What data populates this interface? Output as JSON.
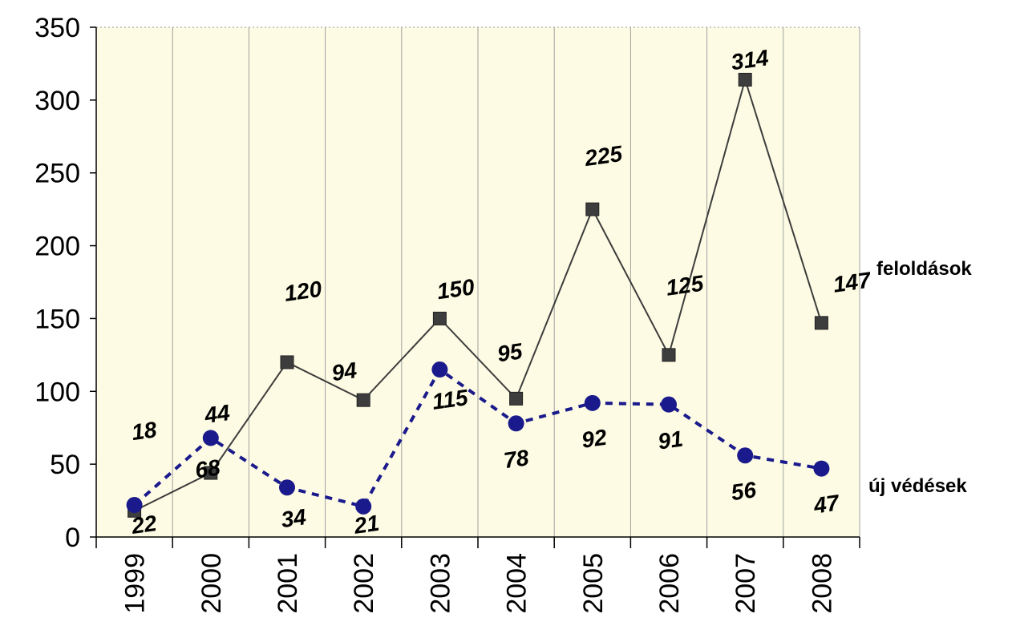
{
  "chart_data": {
    "type": "line",
    "categories": [
      "1999",
      "2000",
      "2001",
      "2002",
      "2003",
      "2004",
      "2005",
      "2006",
      "2007",
      "2008"
    ],
    "ylim": [
      0,
      350
    ],
    "yticks": [
      "0",
      "50",
      "100",
      "150",
      "200",
      "250",
      "300",
      "350"
    ],
    "grid": "vertical",
    "legend": "right",
    "plot_background": "#fdfbe3",
    "series": [
      {
        "name": "feloldások",
        "values": [
          18,
          44,
          120,
          94,
          150,
          95,
          225,
          125,
          314,
          147
        ],
        "labels": [
          "18",
          "44",
          "120",
          "94",
          "150",
          "95",
          "225",
          "125",
          "314",
          "147"
        ],
        "color": "#3d3d3d",
        "marker": "square",
        "line_style": "solid"
      },
      {
        "name": "új védések",
        "values": [
          22,
          68,
          34,
          21,
          115,
          78,
          92,
          91,
          56,
          47
        ],
        "labels": [
          "22",
          "68",
          "34",
          "21",
          "115",
          "78",
          "92",
          "91",
          "56",
          "47"
        ],
        "color": "#1a1a8c",
        "marker": "circle",
        "line_style": "dashed"
      }
    ]
  }
}
